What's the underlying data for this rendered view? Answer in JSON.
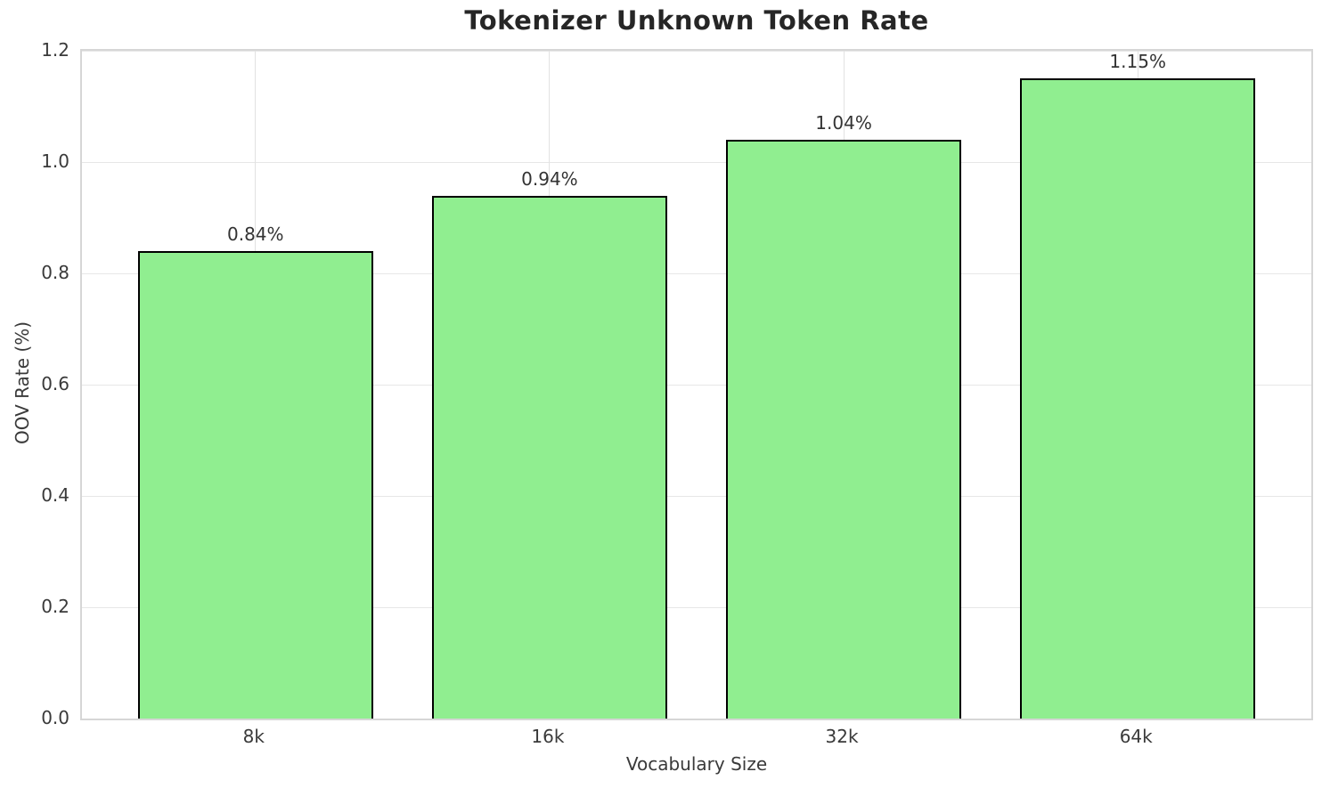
{
  "chart_data": {
    "type": "bar",
    "title": "Tokenizer Unknown Token Rate",
    "xlabel": "Vocabulary Size",
    "ylabel": "OOV Rate (%)",
    "categories": [
      "8k",
      "16k",
      "32k",
      "64k"
    ],
    "values": [
      0.84,
      0.94,
      1.04,
      1.15
    ],
    "bar_labels": [
      "0.84%",
      "0.94%",
      "1.04%",
      "1.15%"
    ],
    "ylim": [
      0.0,
      1.2
    ],
    "yticks": [
      0.0,
      0.2,
      0.4,
      0.6,
      0.8,
      1.0,
      1.2
    ],
    "ytick_labels": [
      "0.0",
      "0.2",
      "0.4",
      "0.6",
      "0.8",
      "1.0",
      "1.2"
    ],
    "grid": true,
    "legend_position": "none",
    "bar_color": "#90EE90",
    "bar_edge_color": "#000000"
  }
}
